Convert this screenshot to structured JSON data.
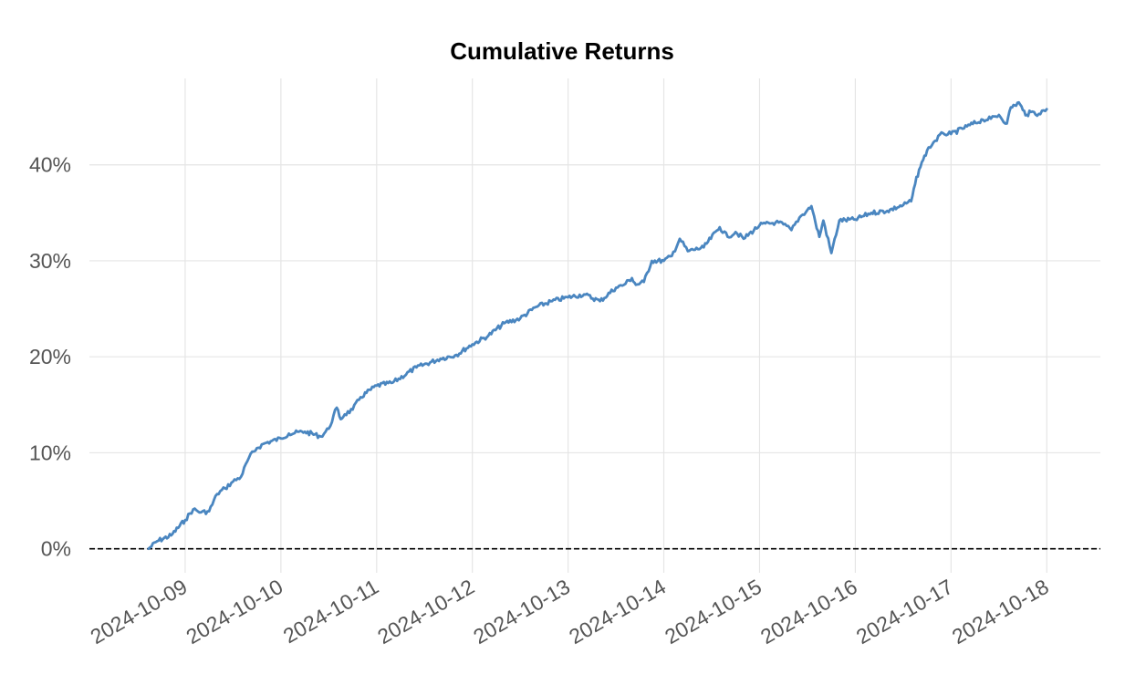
{
  "chart_data": {
    "type": "line",
    "title": "Cumulative Returns",
    "xlabel": "",
    "ylabel": "",
    "xlim": [
      "2024-10-08",
      "2024-10-18"
    ],
    "ylim": [
      -0.025,
      0.49
    ],
    "grid": true,
    "legend": "none",
    "colors": {
      "line": "#4a86c0",
      "zero_line": "#000000",
      "grid": "#e5e5e5",
      "tick_text": "#555555",
      "title": "#000000"
    },
    "x_ticks": [
      "2024-10-09",
      "2024-10-10",
      "2024-10-11",
      "2024-10-12",
      "2024-10-13",
      "2024-10-14",
      "2024-10-15",
      "2024-10-16",
      "2024-10-17",
      "2024-10-18"
    ],
    "y_ticks": [
      {
        "value": 0.0,
        "label": "0%"
      },
      {
        "value": 0.1,
        "label": "10%"
      },
      {
        "value": 0.2,
        "label": "20%"
      },
      {
        "value": 0.3,
        "label": "30%"
      },
      {
        "value": 0.4,
        "label": "40%"
      }
    ],
    "reference_line": {
      "y": 0.0,
      "style": "dashed"
    },
    "series": [
      {
        "x": [
          "2024-10-08 14:50",
          "2024-10-08 17:00",
          "2024-10-08 20:30",
          "2024-10-09 00:00",
          "2024-10-09 02:00",
          "2024-10-09 04:00",
          "2024-10-09 06:00",
          "2024-10-09 08:00",
          "2024-10-09 10:00",
          "2024-10-09 12:00",
          "2024-10-09 14:00",
          "2024-10-09 16:00",
          "2024-10-09 18:00",
          "2024-10-09 20:00",
          "2024-10-10 00:00",
          "2024-10-10 02:00",
          "2024-10-10 06:00",
          "2024-10-10 10:00",
          "2024-10-10 12:00",
          "2024-10-10 14:00",
          "2024-10-10 15:00",
          "2024-10-10 16:00",
          "2024-10-10 18:00",
          "2024-10-10 20:00",
          "2024-10-11 00:00",
          "2024-10-11 04:00",
          "2024-10-11 10:00",
          "2024-10-11 16:00",
          "2024-10-11 20:00",
          "2024-10-12 00:00",
          "2024-10-12 04:00",
          "2024-10-12 08:00",
          "2024-10-12 12:00",
          "2024-10-12 16:00",
          "2024-10-12 20:00",
          "2024-10-13 00:00",
          "2024-10-13 04:00",
          "2024-10-13 08:00",
          "2024-10-13 12:00",
          "2024-10-13 14:00",
          "2024-10-13 16:00",
          "2024-10-13 17:00",
          "2024-10-13 19:00",
          "2024-10-13 21:00",
          "2024-10-14 00:00",
          "2024-10-14 02:00",
          "2024-10-14 04:00",
          "2024-10-14 06:00",
          "2024-10-14 10:00",
          "2024-10-14 14:00",
          "2024-10-14 16:00",
          "2024-10-14 18:00",
          "2024-10-14 20:00",
          "2024-10-15 00:00",
          "2024-10-15 04:00",
          "2024-10-15 06:00",
          "2024-10-15 08:00",
          "2024-10-15 10:00",
          "2024-10-15 12:00",
          "2024-10-15 13:00",
          "2024-10-15 14:00",
          "2024-10-15 15:00",
          "2024-10-15 16:00",
          "2024-10-15 18:00",
          "2024-10-15 20:00",
          "2024-10-16 00:00",
          "2024-10-16 04:00",
          "2024-10-16 08:00",
          "2024-10-16 12:00",
          "2024-10-16 14:00",
          "2024-10-16 15:00",
          "2024-10-16 16:00",
          "2024-10-16 17:00",
          "2024-10-16 18:00",
          "2024-10-16 20:00",
          "2024-10-16 22:00",
          "2024-10-17 00:00",
          "2024-10-17 04:00",
          "2024-10-17 08:00",
          "2024-10-17 10:00",
          "2024-10-17 12:00",
          "2024-10-17 14:00",
          "2024-10-17 15:00",
          "2024-10-17 16:00",
          "2024-10-17 17:00",
          "2024-10-17 18:00",
          "2024-10-17 19:00",
          "2024-10-17 20:00",
          "2024-10-17 22:00",
          "2024-10-18 00:00"
        ],
        "y": [
          0.0,
          0.008,
          0.014,
          0.03,
          0.041,
          0.038,
          0.039,
          0.057,
          0.063,
          0.07,
          0.075,
          0.095,
          0.105,
          0.11,
          0.115,
          0.12,
          0.122,
          0.117,
          0.125,
          0.147,
          0.135,
          0.14,
          0.145,
          0.158,
          0.17,
          0.173,
          0.189,
          0.198,
          0.202,
          0.213,
          0.222,
          0.235,
          0.24,
          0.252,
          0.258,
          0.262,
          0.265,
          0.258,
          0.272,
          0.275,
          0.282,
          0.275,
          0.278,
          0.3,
          0.3,
          0.305,
          0.323,
          0.31,
          0.314,
          0.335,
          0.325,
          0.33,
          0.323,
          0.337,
          0.34,
          0.338,
          0.332,
          0.345,
          0.353,
          0.357,
          0.34,
          0.325,
          0.342,
          0.308,
          0.342,
          0.343,
          0.35,
          0.352,
          0.358,
          0.362,
          0.38,
          0.395,
          0.405,
          0.415,
          0.425,
          0.433,
          0.432,
          0.44,
          0.447,
          0.448,
          0.452,
          0.443,
          0.46,
          0.462,
          0.465,
          0.457,
          0.452,
          0.455,
          0.453,
          0.458
        ]
      }
    ]
  }
}
